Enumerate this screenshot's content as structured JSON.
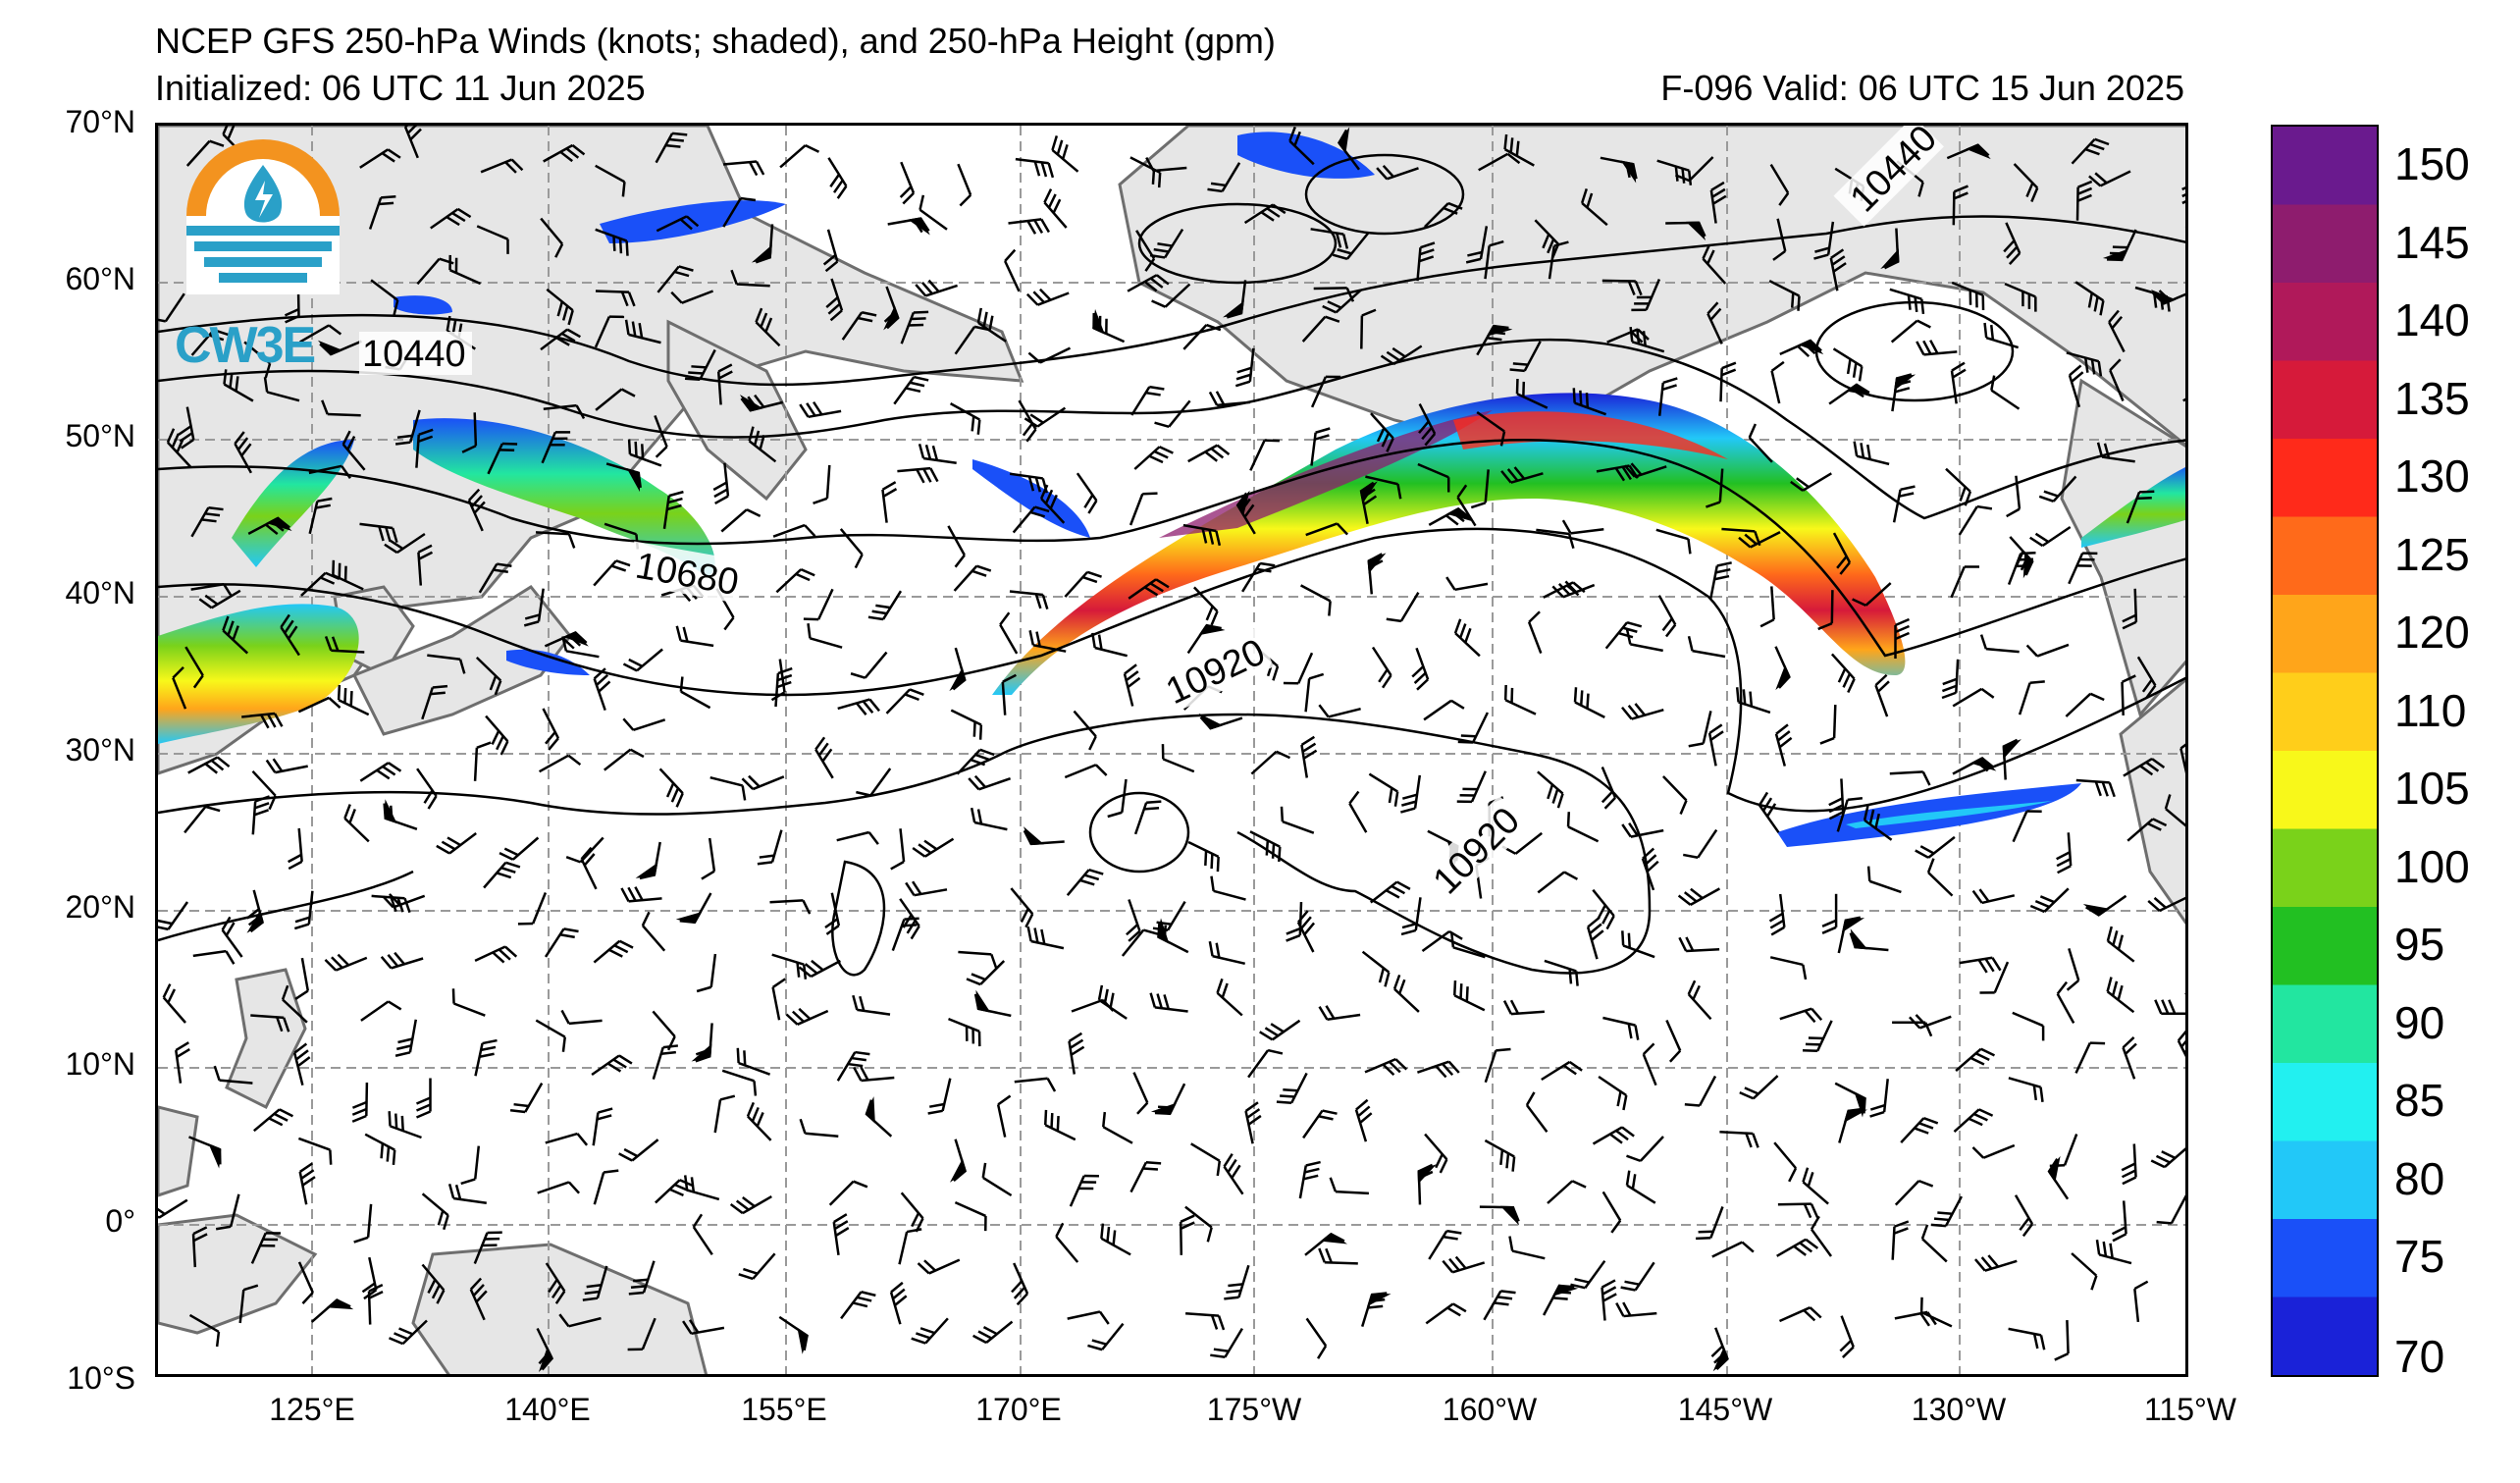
{
  "title": {
    "line1": "NCEP GFS 250-hPa Winds (knots; shaded), and 250-hPa Height (gpm)",
    "line2": "Initialized: 06 UTC 11 Jun 2025",
    "valid": "F-096  Valid: 06 UTC 15 Jun 2025"
  },
  "logo": {
    "text": "CW3E"
  },
  "axes": {
    "lat_labels": [
      "70°N",
      "60°N",
      "50°N",
      "40°N",
      "30°N",
      "20°N",
      "10°N",
      "0°",
      "10°S"
    ],
    "lon_labels": [
      "125°E",
      "140°E",
      "155°E",
      "170°E",
      "175°W",
      "160°W",
      "145°W",
      "130°W",
      "115°W"
    ]
  },
  "contour_labels": [
    "10440",
    "10440",
    "10680",
    "10920",
    "10920"
  ],
  "colorbar": {
    "labels": [
      "150",
      "145",
      "140",
      "135",
      "130",
      "125",
      "120",
      "110",
      "105",
      "100",
      "95",
      "90",
      "85",
      "80",
      "75",
      "70"
    ],
    "colors": [
      "#6a1a8e",
      "#8e1c6e",
      "#b0195a",
      "#d61a3a",
      "#ff2a1a",
      "#ff6a1a",
      "#ffa51a",
      "#ffce1a",
      "#f8f81a",
      "#7ad21a",
      "#22c022",
      "#22e6a0",
      "#22f0f0",
      "#22c8f8",
      "#1a50f8",
      "#1a22d8"
    ]
  },
  "colors": {
    "land": "#e6e6e6",
    "coast": "#6e6e6e",
    "grid": "#9a9a9a",
    "logo_orange": "#f3931f",
    "logo_teal": "#2aa0c8"
  }
}
